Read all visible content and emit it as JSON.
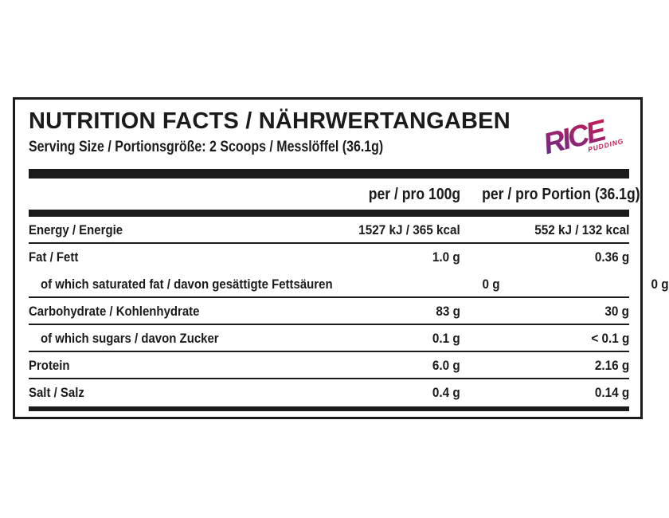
{
  "colors": {
    "ink": "#1b1b1b",
    "background": "#ffffff"
  },
  "label": {
    "title": "NUTRITION FACTS / NÄHRWERTANGABEN",
    "serving_line": "Serving Size / Portionsgröße: 2 Scoops / Messlöffel (36.1g)",
    "columns": {
      "per_100g": "per / pro 100g",
      "per_portion": "per / pro Portion (36.1g)"
    },
    "rows": [
      {
        "name": "Energy / Energie",
        "per_100g": "1527 kJ / 365 kcal",
        "per_portion": "552 kJ / 132 kcal"
      },
      {
        "name": "Fat / Fett",
        "per_100g": "1.0 g",
        "per_portion": "0.36 g"
      },
      {
        "name": "of which saturated fat / davon gesättigte Fettsäuren",
        "per_100g": "0 g",
        "per_portion": "0 g"
      },
      {
        "name": "Carbohydrate / Kohlenhydrate",
        "per_100g": "83 g",
        "per_portion": "30 g"
      },
      {
        "name": "of which sugars / davon Zucker",
        "per_100g": "0.1 g",
        "per_portion": "< 0.1 g"
      },
      {
        "name": "Protein",
        "per_100g": "6.0 g",
        "per_portion": "2.16 g"
      },
      {
        "name": "Salt / Salz",
        "per_100g": "0.4 g",
        "per_portion": "0.14 g"
      }
    ]
  },
  "logo": {
    "text": "RICE",
    "subtext": "PUDDING",
    "gradient_start": "#5e2d8e",
    "gradient_end": "#d41950",
    "subtext_color": "#c2164e"
  }
}
